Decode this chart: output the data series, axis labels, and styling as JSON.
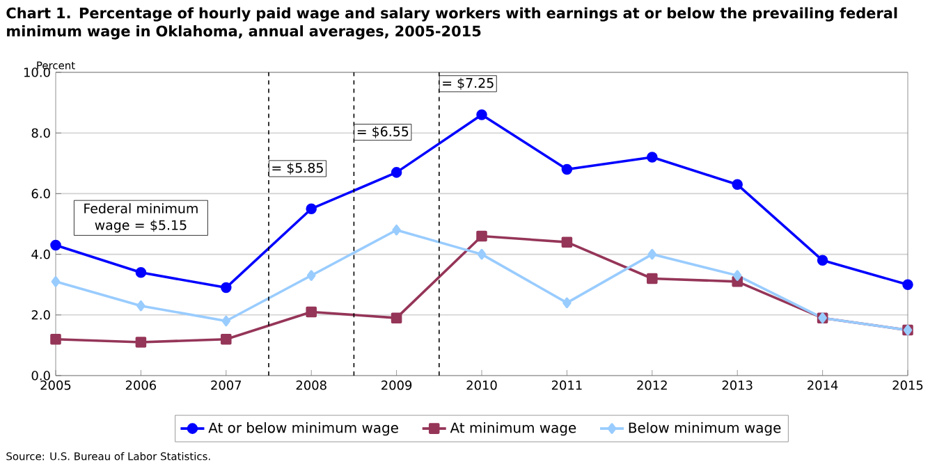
{
  "chart_data": {
    "type": "line",
    "title": "Chart 1. Percentage of hourly paid wage and salary workers with earnings at or below the prevailing federal minimum wage in Oklahoma, annual averages, 2005-2015",
    "ylabel": "Percent",
    "x": [
      2005,
      2006,
      2007,
      2008,
      2009,
      2010,
      2011,
      2012,
      2013,
      2014,
      2015
    ],
    "series": [
      {
        "name": "At or below minimum wage",
        "color": "#0000ff",
        "marker": "circle",
        "values": [
          4.3,
          3.4,
          2.9,
          5.5,
          6.7,
          8.6,
          6.8,
          7.2,
          6.3,
          3.8,
          3.0
        ]
      },
      {
        "name": "At minimum wage",
        "color": "#953558",
        "marker": "square",
        "values": [
          1.2,
          1.1,
          1.2,
          2.1,
          1.9,
          4.6,
          4.4,
          3.2,
          3.1,
          1.9,
          1.5
        ]
      },
      {
        "name": "Below minimum wage",
        "color": "#99ccff",
        "marker": "diamond",
        "values": [
          3.1,
          2.3,
          1.8,
          3.3,
          4.8,
          4.0,
          2.4,
          4.0,
          3.3,
          1.9,
          1.5
        ]
      }
    ],
    "xlim": [
      2005,
      2015
    ],
    "xticks": [
      2005,
      2006,
      2007,
      2008,
      2009,
      2010,
      2011,
      2012,
      2013,
      2014,
      2015
    ],
    "ylim": [
      0,
      10
    ],
    "yticks": [
      {
        "value": 0,
        "label": "0.0"
      },
      {
        "value": 2,
        "label": "2.0"
      },
      {
        "value": 4,
        "label": "4.0"
      },
      {
        "value": 6,
        "label": "6.0"
      },
      {
        "value": 8,
        "label": "8.0"
      },
      {
        "value": 10,
        "label": "10.0"
      }
    ],
    "ref_lines": [
      {
        "axis": "x",
        "value": 2007.5,
        "line_style": "dashed"
      },
      {
        "axis": "x",
        "value": 2008.5,
        "line_style": "dashed"
      },
      {
        "axis": "x",
        "value": 2009.5,
        "line_style": "dashed"
      }
    ],
    "annotations": [
      "Federal minimum wage = $5.15",
      {
        "text": "= $5.85",
        "x": 2007.5,
        "y": 7.1
      },
      {
        "text": "= $6.55",
        "x": 2008.5,
        "y": 8.3
      },
      {
        "text": "= $7.25",
        "x": 2009.5,
        "y": 9.9
      },
      "Source: U.S. Bureau of Labor Statistics."
    ],
    "grid": "y",
    "legend": "bottom",
    "line_style": "solid"
  }
}
